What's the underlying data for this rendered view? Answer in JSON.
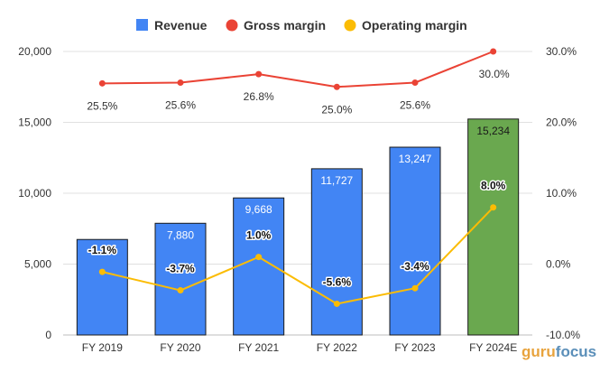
{
  "chart_data": {
    "type": "bar",
    "categories": [
      "FY 2019",
      "FY 2020",
      "FY 2021",
      "FY 2022",
      "FY 2023",
      "FY 2024E"
    ],
    "series": [
      {
        "name": "Revenue",
        "type": "bar",
        "axis": "left",
        "values": [
          6737,
          7880,
          9668,
          11727,
          13247,
          15234
        ],
        "labels": [
          "",
          "7,880",
          "9,668",
          "11,727",
          "13,247",
          "15,234"
        ],
        "color": "#4285f4",
        "estimate_color": "#6aa84f"
      },
      {
        "name": "Gross margin",
        "type": "line",
        "axis": "right",
        "values": [
          25.5,
          25.6,
          26.8,
          25.0,
          25.6,
          30.0
        ],
        "labels": [
          "25.5%",
          "25.6%",
          "26.8%",
          "25.0%",
          "25.6%",
          "30.0%"
        ],
        "color": "#ea4335"
      },
      {
        "name": "Operating margin",
        "type": "line",
        "axis": "right",
        "values": [
          -1.1,
          -3.7,
          1.0,
          -5.6,
          -3.4,
          8.0
        ],
        "labels": [
          "-1.1%",
          "-3.7%",
          "1.0%",
          "-5.6%",
          "-3.4%",
          "8.0%"
        ],
        "color": "#fbbc04"
      }
    ],
    "left_axis": {
      "ylim": [
        0,
        20000
      ],
      "ticks": [
        "0",
        "5,000",
        "10,000",
        "15,000",
        "20,000"
      ]
    },
    "right_axis": {
      "ylim": [
        -10,
        30
      ],
      "ticks": [
        "-10.0%",
        "0.0%",
        "10.0%",
        "20.0%",
        "30.0%"
      ]
    },
    "grid": "horizontal",
    "legend_position": "top"
  },
  "watermark": {
    "part1": "guru",
    "part2": "focus"
  }
}
